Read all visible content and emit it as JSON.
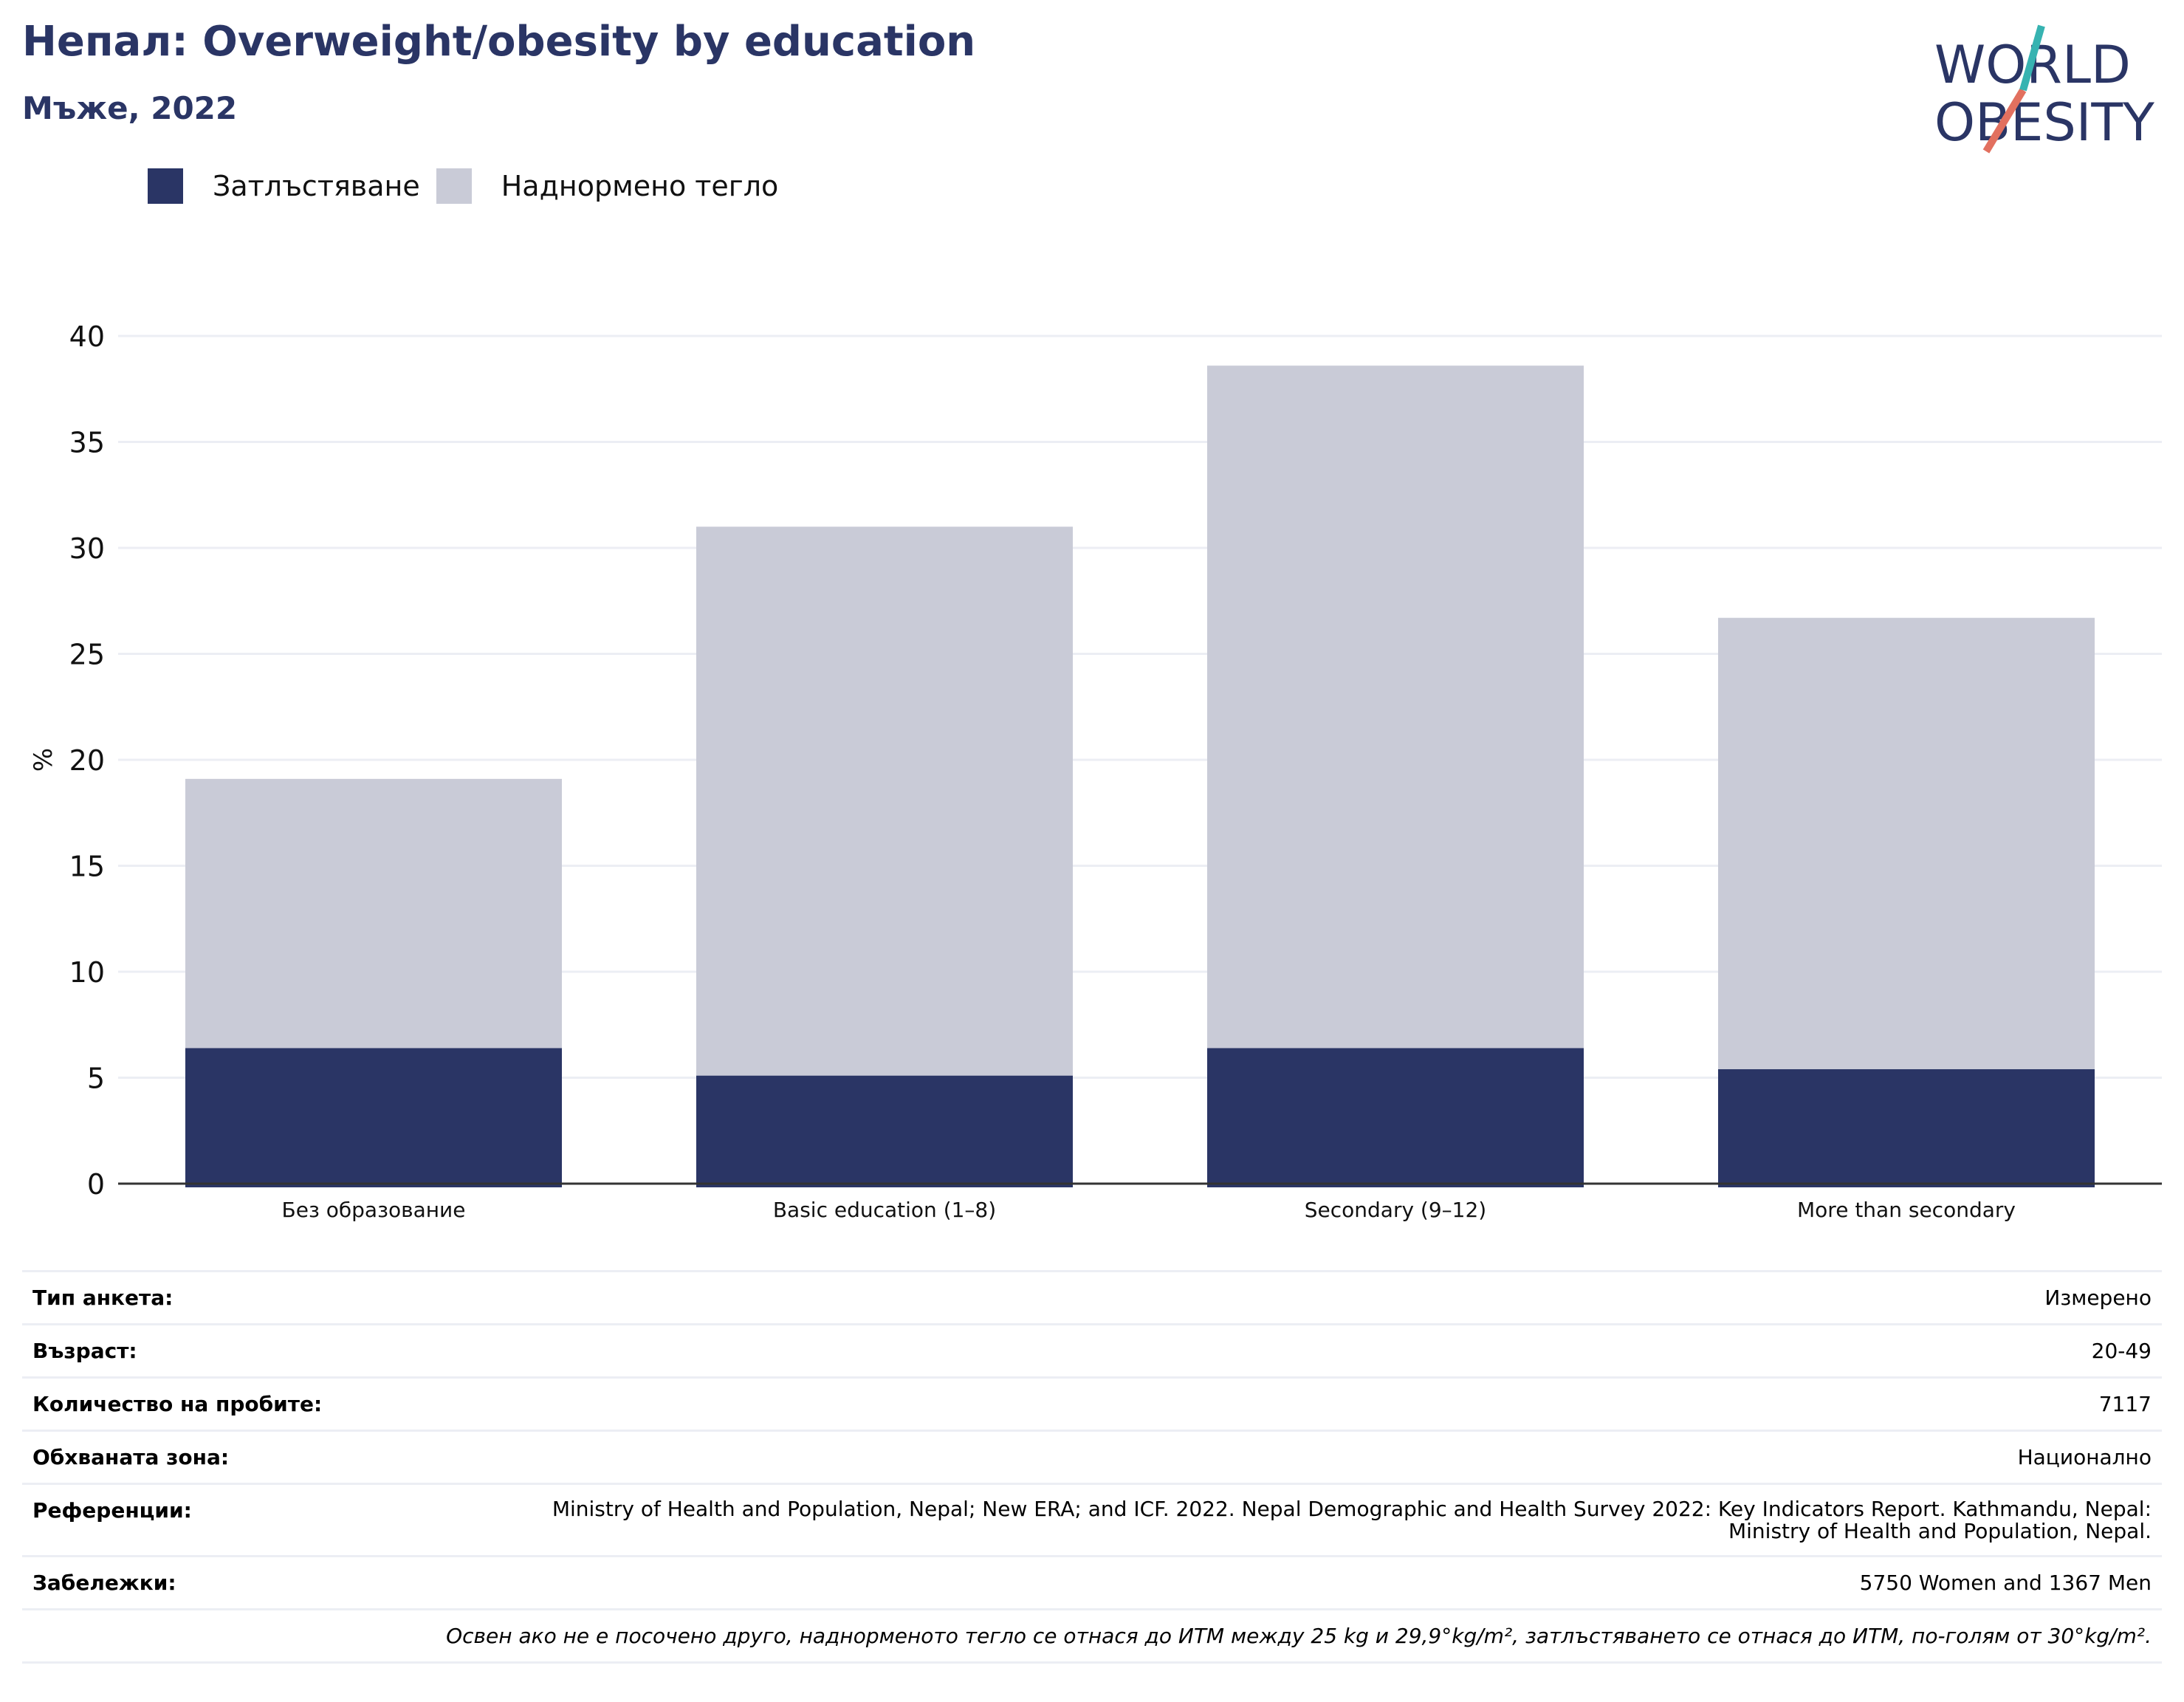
{
  "header": {
    "title": "Непал: Overweight/obesity by education",
    "subtitle": "Мъже, 2022"
  },
  "logo": {
    "line1": "WORLD",
    "line2": "OBESITY"
  },
  "legend": [
    {
      "label": "Затлъстяване",
      "color": "#2a3565"
    },
    {
      "label": "Наднормено тегло",
      "color": "#c9cbd7"
    }
  ],
  "chart_data": {
    "type": "bar",
    "stacked": true,
    "categories": [
      "Без образование",
      "Basic education (1–8)",
      "Secondary (9–12)",
      "More than secondary"
    ],
    "series": [
      {
        "name": "Затлъстяване",
        "color": "#2a3565",
        "values": [
          6.4,
          5.1,
          6.4,
          5.4
        ]
      },
      {
        "name": "Наднормено тегло",
        "color": "#c9cbd7",
        "values": [
          12.7,
          25.9,
          32.2,
          21.3
        ]
      }
    ],
    "ylabel": "%",
    "ylim": [
      0,
      40
    ],
    "yticks": [
      0,
      5,
      10,
      15,
      20,
      25,
      30,
      35,
      40
    ],
    "grid": true
  },
  "info": [
    {
      "label": "Тип анкета:",
      "value": "Измерено"
    },
    {
      "label": "Възраст:",
      "value": "20-49"
    },
    {
      "label": "Количество на пробите:",
      "value": "7117"
    },
    {
      "label": "Обхваната зона:",
      "value": "Национално"
    },
    {
      "label": "Референции:",
      "value": "Ministry of Health and Population, Nepal; New ERA; and ICF. 2022. Nepal Demographic and Health Survey 2022: Key Indicators Report. Kathmandu, Nepal: Ministry of Health and Population, Nepal."
    },
    {
      "label": "Забележки:",
      "value": "5750 Women and 1367 Men"
    }
  ],
  "footnote": "Освен ако не е посочено друго, наднорменото тегло се отнася до ИТМ между 25 kg и 29,9°kg/m², затлъстяването се отнася до ИТМ, по-голям от 30°kg/m²."
}
